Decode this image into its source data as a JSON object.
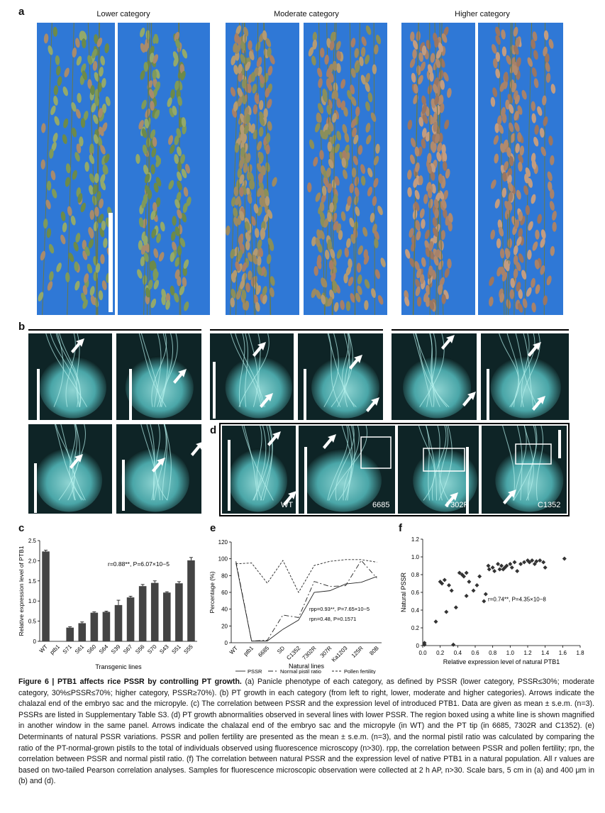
{
  "panels": {
    "a": "a",
    "b": "b",
    "c": "c",
    "d": "d",
    "e": "e",
    "f": "f"
  },
  "panel_a": {
    "categories": [
      "Lower category",
      "Moderate category",
      "Higher category"
    ]
  },
  "panel_d": {
    "labels": [
      "WT",
      "6685",
      "7302R",
      "C1352"
    ]
  },
  "chart_data": [
    {
      "id": "c",
      "type": "bar",
      "ylabel": "Relative expression level of PTB1",
      "xlabel": "Transgenic lines",
      "categories": [
        "WT",
        "ptb1",
        "S71",
        "S61",
        "S60",
        "S64",
        "S39",
        "S67",
        "S56",
        "S70",
        "S43",
        "S51",
        "S55"
      ],
      "values": [
        2.23,
        0.0,
        0.34,
        0.45,
        0.71,
        0.73,
        0.9,
        1.09,
        1.37,
        1.45,
        1.21,
        1.44,
        2.01
      ],
      "errors": [
        0.03,
        0.0,
        0.02,
        0.03,
        0.02,
        0.02,
        0.12,
        0.03,
        0.04,
        0.05,
        0.02,
        0.04,
        0.07
      ],
      "ylim": [
        0,
        2.5
      ],
      "yticks": [
        "0",
        "0.5",
        "1.0",
        "1.5",
        "2.0",
        "2.5"
      ],
      "annotation": "r=0.88**, P=6.07×10−5",
      "color": "#444444"
    },
    {
      "id": "e",
      "type": "line",
      "ylabel": "Percentage (%)",
      "xlabel": "Natural lines",
      "categories": [
        "WT",
        "ptb1",
        "6685",
        "SD",
        "C1352",
        "7302R",
        "307R",
        "Ka1203",
        "125R",
        "80B"
      ],
      "ylim": [
        0,
        120
      ],
      "yticks": [
        "0",
        "20",
        "40",
        "60",
        "80",
        "100",
        "120"
      ],
      "series": [
        {
          "name": "PSSR",
          "values": [
            95,
            2,
            2,
            16,
            27,
            60,
            62,
            70,
            72,
            79
          ],
          "dash": ""
        },
        {
          "name": "Normal pistil ratio",
          "values": [
            97,
            2,
            3,
            33,
            30,
            73,
            67,
            68,
            98,
            77
          ],
          "dash": "7,3,2,3"
        },
        {
          "name": "Pollen fertility",
          "values": [
            94,
            95,
            71,
            98,
            60,
            92,
            97,
            99,
            99,
            96
          ],
          "dash": "3,2"
        }
      ],
      "annotation1": "rpp=0.93**, P=7.65×10−5",
      "annotation2": "rpn=0.48, P=0.1571"
    },
    {
      "id": "f",
      "type": "scatter",
      "ylabel": "Natural PSSR",
      "xlabel": "Relative expression level of natural PTB1",
      "xlim": [
        0,
        1.8
      ],
      "ylim": [
        0,
        1.2
      ],
      "xticks": [
        "0.0",
        "0.2",
        "0.4",
        "0.6",
        "0.8",
        "1.0",
        "1.2",
        "1.4",
        "1.6",
        "1.8"
      ],
      "yticks": [
        "0",
        "0.2",
        "0.4",
        "0.6",
        "0.8",
        "1.0",
        "1.2"
      ],
      "annotation": "r=0.74**, P=4.35×10−8",
      "points": [
        [
          0.02,
          0.01
        ],
        [
          0.02,
          0.03
        ],
        [
          0.15,
          0.27
        ],
        [
          0.2,
          0.72
        ],
        [
          0.22,
          0.7
        ],
        [
          0.25,
          0.74
        ],
        [
          0.27,
          0.38
        ],
        [
          0.3,
          0.68
        ],
        [
          0.33,
          0.62
        ],
        [
          0.35,
          0.01
        ],
        [
          0.38,
          0.43
        ],
        [
          0.42,
          0.82
        ],
        [
          0.45,
          0.8
        ],
        [
          0.47,
          0.78
        ],
        [
          0.5,
          0.82
        ],
        [
          0.5,
          0.56
        ],
        [
          0.53,
          0.72
        ],
        [
          0.58,
          0.62
        ],
        [
          0.62,
          0.68
        ],
        [
          0.65,
          0.78
        ],
        [
          0.7,
          0.5
        ],
        [
          0.72,
          0.58
        ],
        [
          0.75,
          0.9
        ],
        [
          0.76,
          0.86
        ],
        [
          0.8,
          0.88
        ],
        [
          0.82,
          0.84
        ],
        [
          0.86,
          0.92
        ],
        [
          0.88,
          0.86
        ],
        [
          0.9,
          0.9
        ],
        [
          0.92,
          0.86
        ],
        [
          0.94,
          0.88
        ],
        [
          0.96,
          0.9
        ],
        [
          1.0,
          0.92
        ],
        [
          1.02,
          0.88
        ],
        [
          1.05,
          0.94
        ],
        [
          1.08,
          0.84
        ],
        [
          1.12,
          0.92
        ],
        [
          1.16,
          0.94
        ],
        [
          1.2,
          0.96
        ],
        [
          1.22,
          0.94
        ],
        [
          1.25,
          0.96
        ],
        [
          1.28,
          0.92
        ],
        [
          1.3,
          0.95
        ],
        [
          1.34,
          0.96
        ],
        [
          1.38,
          0.94
        ],
        [
          1.4,
          0.88
        ],
        [
          1.62,
          0.98
        ]
      ]
    }
  ],
  "caption": {
    "title": "Figure 6 | PTB1 affects rice PSSR by controlling PT growth.",
    "body": " (a) Panicle phenotype of each category, as defined by PSSR (lower category, PSSR≤30%; moderate category, 30%≤PSSR≤70%; higher category, PSSR≥70%). (b) PT growth in each category (from left to right, lower, moderate and higher categories). Arrows indicate the chalazal end of the embryo sac and the micropyle. (c) The correlation between PSSR and the expression level of introduced PTB1. Data are given as mean ± s.e.m. (n=3). PSSRs are listed in Supplementary Table S3. (d) PT growth abnormalities observed in several lines with lower PSSR. The region boxed using a white line is shown magnified in another window in the same panel. Arrows indicate the chalazal end of the embryo sac and the micropyle (in WT) and the PT tip (in 6685, 7302R and C1352). (e) Determinants of natural PSSR variations. PSSR and pollen fertility are presented as the mean ± s.e.m. (n=3), and the normal pistil ratio was calculated by comparing the ratio of the PT-normal-grown pistils to the total of individuals observed using fluorescence microscopy (n>30). rpp, the correlation between PSSR and pollen fertility; rpn, the correlation between PSSR and normal pistil ratio. (f) The correlation between natural PSSR and the expression level of native PTB1 in a natural population. All r values are based on two-tailed Pearson correlation analyses. Samples for fluorescence microscopic observation were collected at 2 h AP, n>30. Scale bars, 5 cm in (a) and 400 μm in (b) and (d)."
  }
}
